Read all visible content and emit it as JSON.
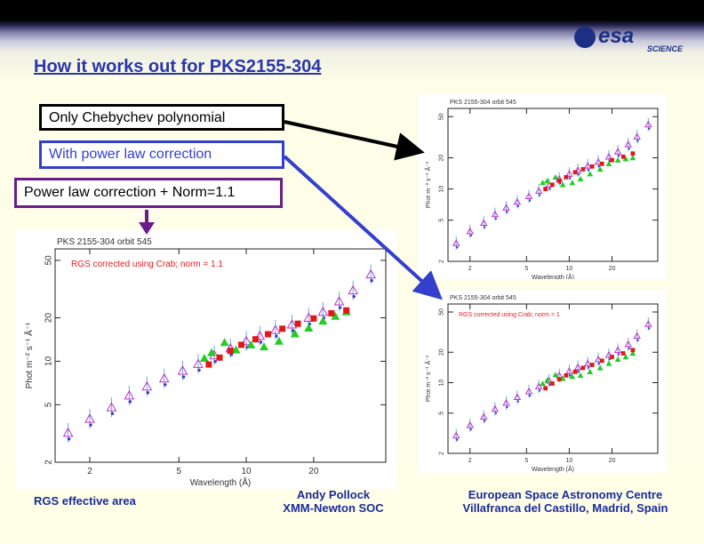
{
  "slide": {
    "title": "How it works out for PKS2155-304",
    "logo_text": "esa",
    "logo_sub": "SCIENCE",
    "colors": {
      "title": "#2a36a8",
      "blue_box": "#3440cc",
      "purple_box": "#6a1d8a",
      "footer": "#1a2a9a"
    }
  },
  "labels": {
    "chebychev": "Only Chebychev polynomial",
    "powerlaw": "With power law correction",
    "powerlaw_norm": "Power law correction + Norm=1.1"
  },
  "footer": {
    "left": "RGS effective area",
    "center_line1": "Andy Pollock",
    "center_line2": "XMM-Newton SOC",
    "right_line1": "European Space Astronomy Centre",
    "right_line2": "Villafranca del Castillo, Madrid, Spain"
  },
  "chart_data": [
    {
      "id": "main",
      "type": "scatter",
      "title": "PKS 2155-304 orbit 545",
      "annotation": "RGS corrected using Crab; norm = 1.1",
      "xlabel": "Wavelength (Å)",
      "ylabel": "Phot m⁻² s⁻¹ Å⁻¹",
      "xscale": "log",
      "yscale": "log",
      "xlim": [
        1.4,
        42
      ],
      "ylim": [
        2,
        60
      ],
      "xticks": [
        2,
        5,
        10,
        20
      ],
      "yticks": [
        2,
        5,
        10,
        20,
        50
      ],
      "series": [
        {
          "name": "open-triangles",
          "x": [
            1.6,
            2.0,
            2.5,
            3.0,
            3.6,
            4.3,
            5.2,
            6.1,
            7.2,
            8.5,
            10.0,
            11.5,
            13.5,
            16.0,
            19.0,
            22.0,
            26.0,
            30.0,
            36.0
          ],
          "y": [
            3.2,
            4.0,
            4.8,
            5.8,
            6.7,
            7.6,
            8.6,
            9.6,
            11.0,
            12.3,
            13.8,
            15.0,
            16.5,
            18.0,
            20.0,
            22.0,
            26.0,
            31.0,
            40.0
          ]
        },
        {
          "name": "green-filled-triangles",
          "x": [
            6.5,
            7.0,
            8.0,
            9.0,
            10.5,
            12.0,
            14.0,
            16.5,
            19.0,
            22.0,
            25.0,
            28.0
          ],
          "y": [
            10.5,
            11.5,
            13.5,
            12.0,
            13.0,
            12.6,
            13.8,
            15.5,
            17.0,
            19.0,
            20.5,
            22.0
          ]
        },
        {
          "name": "red-squares",
          "x": [
            6.8,
            7.6,
            8.5,
            9.5,
            11.0,
            12.5,
            14.5,
            17.0,
            20.0,
            24.0,
            28.0
          ],
          "y": [
            9.5,
            10.6,
            11.8,
            13.0,
            14.2,
            15.4,
            16.8,
            18.2,
            19.8,
            21.5,
            22.5
          ]
        }
      ]
    },
    {
      "id": "top",
      "type": "scatter",
      "title": "PKS 2155-304 orbit 545",
      "annotation": "",
      "xlabel": "Wavelength (Å)",
      "ylabel": "Phot m⁻² s⁻¹ Å⁻¹",
      "xscale": "log",
      "yscale": "log",
      "xlim": [
        1.4,
        42
      ],
      "ylim": [
        2,
        60
      ],
      "xticks": [
        2,
        5,
        10,
        20
      ],
      "yticks": [
        2,
        5,
        10,
        20,
        50
      ],
      "series": [
        {
          "name": "open-triangles",
          "x": [
            1.6,
            2.0,
            2.5,
            3.0,
            3.6,
            4.3,
            5.2,
            6.1,
            7.2,
            8.5,
            10.0,
            11.5,
            13.5,
            16.0,
            19.0,
            22.0,
            26.0,
            30.0,
            36.0
          ],
          "y": [
            3.0,
            3.9,
            4.7,
            5.7,
            6.6,
            7.5,
            8.5,
            9.6,
            11.0,
            12.5,
            14.0,
            15.2,
            16.8,
            18.3,
            20.5,
            23.0,
            27.0,
            32.0,
            42.0
          ]
        },
        {
          "name": "green-filled-triangles",
          "x": [
            6.5,
            7.0,
            8.0,
            9.0,
            10.5,
            12.0,
            14.0,
            16.5,
            19.0,
            22.0,
            25.0,
            28.0
          ],
          "y": [
            11.5,
            12.0,
            13.0,
            11.0,
            11.5,
            12.5,
            14.0,
            15.5,
            17.5,
            19.0,
            19.5,
            20.0
          ]
        },
        {
          "name": "red-squares",
          "x": [
            6.8,
            7.6,
            8.5,
            9.5,
            11.0,
            12.5,
            14.5,
            17.0,
            20.0,
            24.0,
            28.0
          ],
          "y": [
            10.0,
            11.0,
            12.0,
            13.0,
            14.5,
            15.5,
            16.5,
            17.5,
            19.0,
            20.5,
            22.0
          ]
        }
      ]
    },
    {
      "id": "bottom",
      "type": "scatter",
      "title": "PKS 2155-304 orbit 545",
      "annotation": "RGS corrected using Crab; norm = 1",
      "xlabel": "Wavelength (Å)",
      "ylabel": "Phot m⁻² s⁻¹ Å⁻¹",
      "xscale": "log",
      "yscale": "log",
      "xlim": [
        1.4,
        42
      ],
      "ylim": [
        2,
        60
      ],
      "xticks": [
        2,
        5,
        10,
        20
      ],
      "yticks": [
        2,
        5,
        10,
        20,
        50
      ],
      "series": [
        {
          "name": "open-triangles",
          "x": [
            1.6,
            2.0,
            2.5,
            3.0,
            3.6,
            4.3,
            5.2,
            6.1,
            7.2,
            8.5,
            10.0,
            11.5,
            13.5,
            16.0,
            19.0,
            22.0,
            26.0,
            30.0,
            36.0
          ],
          "y": [
            3.0,
            3.8,
            4.6,
            5.5,
            6.3,
            7.2,
            8.2,
            9.2,
            10.5,
            11.8,
            13.0,
            14.2,
            15.5,
            17.0,
            18.8,
            21.0,
            24.0,
            29.0,
            38.0
          ]
        },
        {
          "name": "green-filled-triangles",
          "x": [
            6.5,
            7.0,
            8.0,
            9.0,
            10.5,
            12.0,
            14.0,
            16.5,
            19.0,
            22.0,
            25.0,
            28.0
          ],
          "y": [
            9.8,
            10.6,
            12.0,
            11.0,
            11.5,
            11.8,
            12.8,
            14.0,
            15.5,
            17.0,
            18.0,
            19.5
          ]
        },
        {
          "name": "red-squares",
          "x": [
            6.8,
            7.6,
            8.5,
            9.5,
            11.0,
            12.5,
            14.5,
            17.0,
            20.0,
            24.0,
            28.0
          ],
          "y": [
            8.8,
            9.8,
            10.8,
            11.8,
            12.8,
            14.0,
            15.0,
            16.5,
            18.0,
            19.5,
            21.0
          ]
        }
      ]
    }
  ]
}
